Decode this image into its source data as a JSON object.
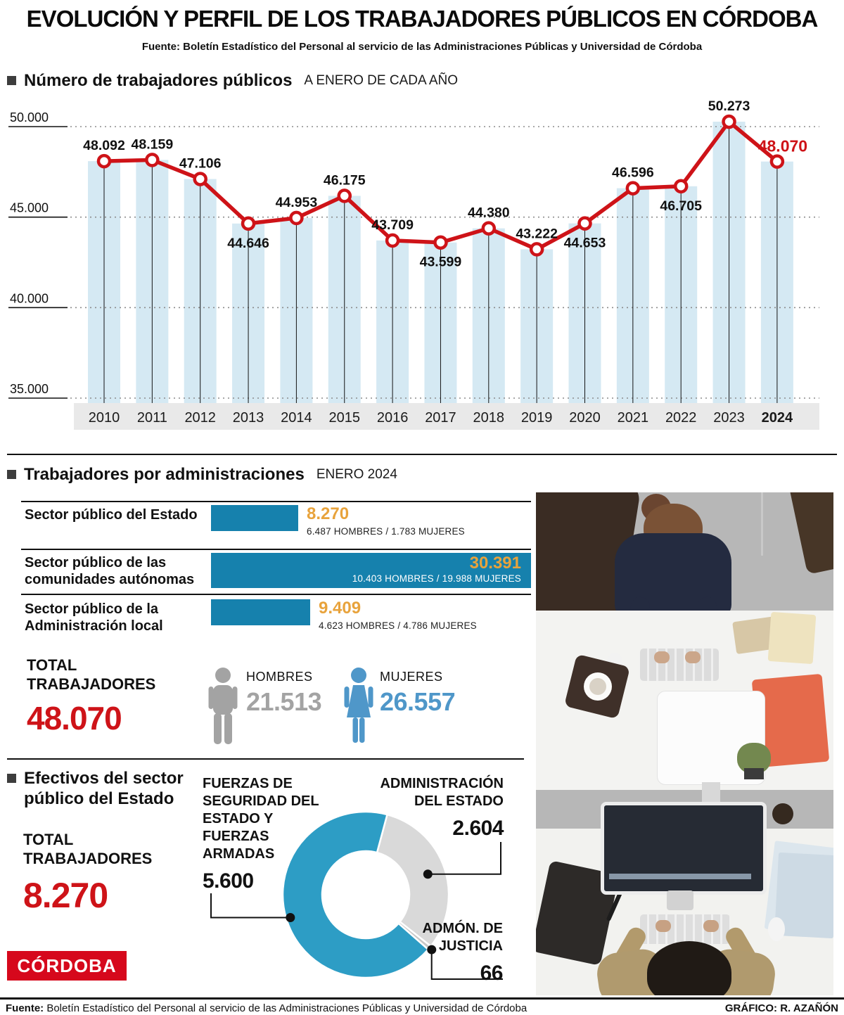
{
  "header": {
    "title": "EVOLUCIÓN Y PERFIL DE LOS TRABAJADORES PÚBLICOS EN CÓRDOBA",
    "source": "Fuente: Boletín Estadístico del Personal al servicio de las Administraciones Públicas y Universidad de Córdoba"
  },
  "colors": {
    "red": "#ce1318",
    "teal": "#1681ad",
    "light_blue": "#d5e9f3",
    "orange": "#e8a33c",
    "gray_num": "#a3a3a3",
    "women_blue": "#4f97c9",
    "donut_blue": "#2d9dc5",
    "donut_gray": "#d9d9d9",
    "justicia_gray": "#c7c7c7"
  },
  "evolution": {
    "title": "Número de trabajadores públicos",
    "subtitle": "A ENERO DE CADA AÑO",
    "chart_data": {
      "type": "line",
      "x": [
        2010,
        2011,
        2012,
        2013,
        2014,
        2015,
        2016,
        2017,
        2018,
        2019,
        2020,
        2021,
        2022,
        2023,
        2024
      ],
      "values": [
        48092,
        48159,
        47106,
        44646,
        44953,
        46175,
        43709,
        43599,
        44380,
        43222,
        44653,
        46596,
        46705,
        50273,
        48070
      ],
      "point_labels": [
        "48.092",
        "48.159",
        "47.106",
        "44.646",
        "44.953",
        "46.175",
        "43.709",
        "43.599",
        "44.380",
        "43.222",
        "44.653",
        "46.596",
        "46.705",
        "50.273",
        "48.070"
      ],
      "label_pos": [
        "above",
        "above",
        "above",
        "below",
        "above",
        "above",
        "above",
        "below",
        "above",
        "above",
        "below",
        "above",
        "below",
        "above",
        "above"
      ],
      "yticks": [
        "50.000",
        "45.000",
        "40.000",
        "35.000"
      ],
      "ytick_values": [
        50000,
        45000,
        40000,
        35000
      ],
      "ylim": [
        35000,
        50000
      ],
      "grid": "dotted",
      "legend": "none"
    }
  },
  "admin": {
    "title": "Trabajadores por administraciones",
    "subtitle": "ENERO 2024",
    "chart_data": {
      "type": "bar",
      "orientation": "horizontal",
      "rows": [
        {
          "label": "Sector público del Estado",
          "value": 8270,
          "value_label": "8.270",
          "detail": "6.487 HOMBRES / 1.783 MUJERES"
        },
        {
          "label": "Sector público de las comunidades autónomas",
          "value": 30391,
          "value_label": "30.391",
          "detail": "10.403 HOMBRES / 19.988 MUJERES"
        },
        {
          "label": "Sector público de la Administración local",
          "value": 9409,
          "value_label": "9.409",
          "detail": "4.623 HOMBRES / 4.786 MUJERES"
        }
      ]
    },
    "total_label": "TOTAL TRABAJADORES",
    "total_value": "48.070",
    "hombres_label": "HOMBRES",
    "hombres_value": "21.513",
    "mujeres_label": "MUJERES",
    "mujeres_value": "26.557"
  },
  "estado": {
    "title": "Efectivos del sector público del Estado",
    "total_label": "TOTAL TRABAJADORES",
    "total_value": "8.270",
    "chart_data": {
      "type": "pie",
      "donut": true,
      "total": 8270,
      "start_angle": 15,
      "slices": [
        {
          "name": "ADMINISTRACIÓN DEL ESTADO",
          "value": 2604,
          "value_label": "2.604",
          "color_key": "donut_gray"
        },
        {
          "name": "ADMÓN. DE JUSTICIA",
          "value": 66,
          "value_label": "66",
          "color_key": "justicia_gray"
        },
        {
          "name": "FUERZAS DE SEGURIDAD DEL ESTADO Y FUERZAS ARMADAS",
          "value": 5600,
          "value_label": "5.600",
          "color_key": "donut_blue"
        }
      ]
    }
  },
  "logo": "CÓRDOBA",
  "footer": {
    "source_label": "Fuente:",
    "source_text": " Boletín Estadístico del Personal al servicio de las Administraciones Públicas y Universidad de Córdoba",
    "credit": "GRÁFICO: R. AZAÑÓN"
  }
}
